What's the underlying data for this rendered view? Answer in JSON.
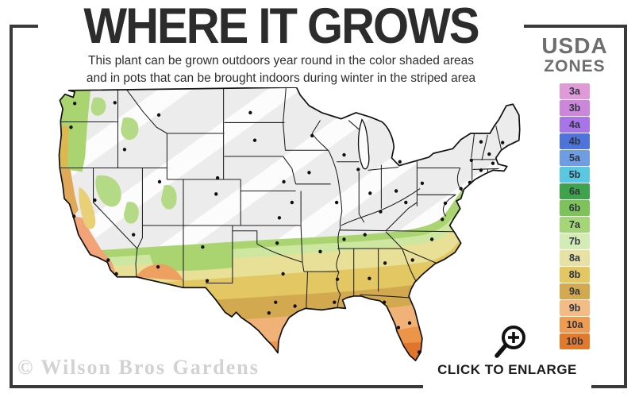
{
  "header": {
    "title": "WHERE IT GROWS",
    "subtitle_line1": "This plant can be grown outdoors year round in the color shaded areas",
    "subtitle_line2": "and in pots that can be brought indoors during winter in the striped area"
  },
  "legend": {
    "title_line1": "USDA",
    "title_line2": "ZONES",
    "zones": [
      {
        "label": "3a",
        "color": "#e09ad8"
      },
      {
        "label": "3b",
        "color": "#cc87db"
      },
      {
        "label": "4a",
        "color": "#a875e8"
      },
      {
        "label": "4b",
        "color": "#4e74dc"
      },
      {
        "label": "5a",
        "color": "#6f9de3"
      },
      {
        "label": "5b",
        "color": "#5ac8e0"
      },
      {
        "label": "6a",
        "color": "#3ea34b"
      },
      {
        "label": "6b",
        "color": "#7dc25a"
      },
      {
        "label": "7a",
        "color": "#a4d677"
      },
      {
        "label": "7b",
        "color": "#d3ebb4"
      },
      {
        "label": "8a",
        "color": "#e7e2a4"
      },
      {
        "label": "8b",
        "color": "#e2c763"
      },
      {
        "label": "9a",
        "color": "#d3a94f"
      },
      {
        "label": "9b",
        "color": "#f3bc85"
      },
      {
        "label": "10a",
        "color": "#ef9c50"
      },
      {
        "label": "10b",
        "color": "#e17a2d"
      }
    ]
  },
  "map": {
    "striped_area_color": "#ececec",
    "stripe_color": "#ffffff",
    "state_border_color": "#1c1c1c",
    "city_dot_color": "#111111"
  },
  "enlarge": {
    "label": "CLICK TO ENLARGE",
    "icon": "magnifier-plus-icon"
  },
  "watermark": "© Wilson Bros Gardens",
  "colors": {
    "frame": "#3a3a3a",
    "title_text": "#2c2c2c",
    "legend_title_text": "#6e6e6e",
    "map_zone7_green": "#a9d470",
    "map_zone7b_palegreen": "#cde6a0",
    "map_zone8a_yellow": "#e9e097",
    "map_zone8b_gold": "#e2c763",
    "map_zone9a_darkgold": "#d2a94e",
    "map_zone9b_peach": "#f0b277",
    "map_zone10a_orange": "#ec9549",
    "map_zone10b_deeporange": "#e0762e",
    "map_coast_salmon": "#f2a478"
  }
}
